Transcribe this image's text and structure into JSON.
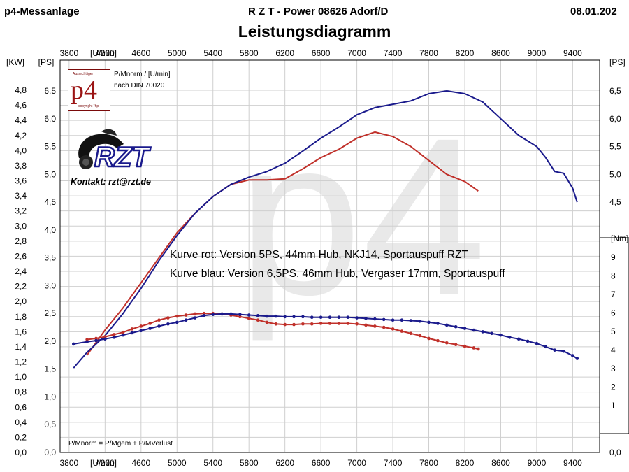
{
  "header": {
    "left": "p4-Messanlage",
    "center": "R Z T - Power   08626 Adorf/D",
    "date": "08.01.202",
    "title": "Leistungsdiagramm"
  },
  "logo": {
    "text": "p4",
    "small_text": "Ausrechtliger",
    "copyright": "copyright *hp"
  },
  "notes": {
    "pmnorm": "P/Mnorm / [U/min]",
    "din": "nach DIN 70020",
    "formula": "P/Mnorm = P/Mgem + P/MVerlust",
    "kontakt": "Kontakt: rzt@rzt.de",
    "brand": "RZT"
  },
  "chart_data": {
    "type": "line",
    "title": "Leistungsdiagramm",
    "xlabel": "[U/min]",
    "xlim": [
      3700,
      9700
    ],
    "x_ticks": [
      3800,
      4200,
      4600,
      5000,
      5400,
      5800,
      6200,
      6600,
      7000,
      7400,
      7800,
      8200,
      8600,
      9000,
      9400
    ],
    "left_axes": {
      "kw_label": "[KW]",
      "ps_label": "[PS]",
      "kw_ticks": [
        "4,8",
        "4,6",
        "4,4",
        "4,2",
        "4,0",
        "3,8",
        "3,6",
        "3,4",
        "3,2",
        "3,0",
        "2,8",
        "2,6",
        "2,4",
        "2,2",
        "2,0",
        "1,8",
        "1,6",
        "1,4",
        "1,2",
        "1,0",
        "0,8",
        "0,6",
        "0,4",
        "0,2",
        "0,0"
      ],
      "ps_ticks": [
        "6,5",
        "6,0",
        "5,5",
        "5,0",
        "4,5",
        "4,0",
        "3,5",
        "3,0",
        "2,5",
        "2,0",
        "1,5",
        "1,0",
        "0,5",
        "0,0"
      ]
    },
    "right_axes": {
      "ps_label": "[PS]",
      "ps_ticks": [
        "6,5",
        "6,0",
        "5,5",
        "5,0",
        "4,5"
      ],
      "nm_label": "[Nm]",
      "nm_ticks": [
        "9",
        "8",
        "7",
        "6",
        "5",
        "4",
        "3",
        "2",
        "1"
      ],
      "bottom_tick": "0,0"
    },
    "annotations": [
      "Kurve rot: Version 5PS, 44mm Hub, NKJ14, Sportauspuff RZT",
      "Kurve blau: Version 6,5PS, 46mm Hub, Vergaser 17mm, Sportauspuff"
    ],
    "series": [
      {
        "kind": "power",
        "color": "#c0302a",
        "x": [
          4000,
          4200,
          4400,
          4600,
          4800,
          5000,
          5200,
          5400,
          5600,
          5800,
          6000,
          6200,
          6400,
          6600,
          6800,
          7000,
          7200,
          7400,
          7600,
          7800,
          8000,
          8200,
          8350
        ],
        "y": [
          1.75,
          2.2,
          2.6,
          3.05,
          3.5,
          3.95,
          4.3,
          4.6,
          4.82,
          4.9,
          4.9,
          4.92,
          5.1,
          5.3,
          5.45,
          5.65,
          5.76,
          5.68,
          5.5,
          5.25,
          5.0,
          4.87,
          4.7
        ]
      },
      {
        "kind": "power",
        "color": "#1a1a8c",
        "x": [
          3850,
          4000,
          4200,
          4400,
          4600,
          4800,
          5000,
          5200,
          5400,
          5600,
          5800,
          6000,
          6200,
          6400,
          6600,
          6800,
          7000,
          7200,
          7400,
          7600,
          7800,
          8000,
          8200,
          8400,
          8600,
          8800,
          9000,
          9100,
          9200,
          9300,
          9400,
          9450
        ],
        "y": [
          1.52,
          1.8,
          2.1,
          2.5,
          2.95,
          3.45,
          3.9,
          4.3,
          4.6,
          4.82,
          4.95,
          5.05,
          5.2,
          5.42,
          5.65,
          5.85,
          6.07,
          6.2,
          6.26,
          6.32,
          6.45,
          6.5,
          6.45,
          6.3,
          6.0,
          5.7,
          5.5,
          5.3,
          5.05,
          5.02,
          4.75,
          4.5
        ]
      },
      {
        "kind": "torque",
        "color": "#c0302a",
        "x": [
          4000,
          4100,
          4200,
          4300,
          4400,
          4500,
          4600,
          4700,
          4800,
          4900,
          5000,
          5100,
          5200,
          5300,
          5400,
          5500,
          5600,
          5700,
          5800,
          5900,
          6000,
          6100,
          6200,
          6300,
          6400,
          6500,
          6600,
          6700,
          6800,
          6900,
          7000,
          7100,
          7200,
          7300,
          7400,
          7500,
          7600,
          7700,
          7800,
          7900,
          8000,
          8100,
          8200,
          8300,
          8350
        ],
        "y": [
          2.03,
          2.05,
          2.08,
          2.12,
          2.16,
          2.22,
          2.27,
          2.32,
          2.38,
          2.42,
          2.45,
          2.47,
          2.49,
          2.5,
          2.5,
          2.49,
          2.47,
          2.44,
          2.41,
          2.38,
          2.34,
          2.31,
          2.3,
          2.3,
          2.31,
          2.31,
          2.32,
          2.32,
          2.32,
          2.32,
          2.31,
          2.29,
          2.27,
          2.25,
          2.22,
          2.18,
          2.14,
          2.1,
          2.05,
          2.01,
          1.97,
          1.94,
          1.91,
          1.88,
          1.86
        ]
      },
      {
        "kind": "torque",
        "color": "#1a1a8c",
        "x": [
          3850,
          4000,
          4100,
          4200,
          4300,
          4400,
          4500,
          4600,
          4700,
          4800,
          4900,
          5000,
          5100,
          5200,
          5300,
          5400,
          5500,
          5600,
          5700,
          5800,
          5900,
          6000,
          6100,
          6200,
          6300,
          6400,
          6500,
          6600,
          6700,
          6800,
          6900,
          7000,
          7100,
          7200,
          7300,
          7400,
          7500,
          7600,
          7700,
          7800,
          7900,
          8000,
          8100,
          8200,
          8300,
          8400,
          8500,
          8600,
          8700,
          8800,
          8900,
          9000,
          9100,
          9200,
          9300,
          9400,
          9450
        ],
        "y": [
          1.95,
          1.99,
          2.01,
          2.04,
          2.07,
          2.11,
          2.15,
          2.19,
          2.23,
          2.27,
          2.31,
          2.34,
          2.38,
          2.42,
          2.46,
          2.48,
          2.49,
          2.49,
          2.48,
          2.47,
          2.46,
          2.45,
          2.45,
          2.44,
          2.44,
          2.44,
          2.43,
          2.43,
          2.43,
          2.43,
          2.43,
          2.42,
          2.41,
          2.4,
          2.39,
          2.38,
          2.38,
          2.37,
          2.36,
          2.34,
          2.32,
          2.29,
          2.26,
          2.23,
          2.2,
          2.17,
          2.14,
          2.11,
          2.07,
          2.04,
          2.0,
          1.96,
          1.9,
          1.84,
          1.82,
          1.74,
          1.69
        ]
      }
    ]
  }
}
